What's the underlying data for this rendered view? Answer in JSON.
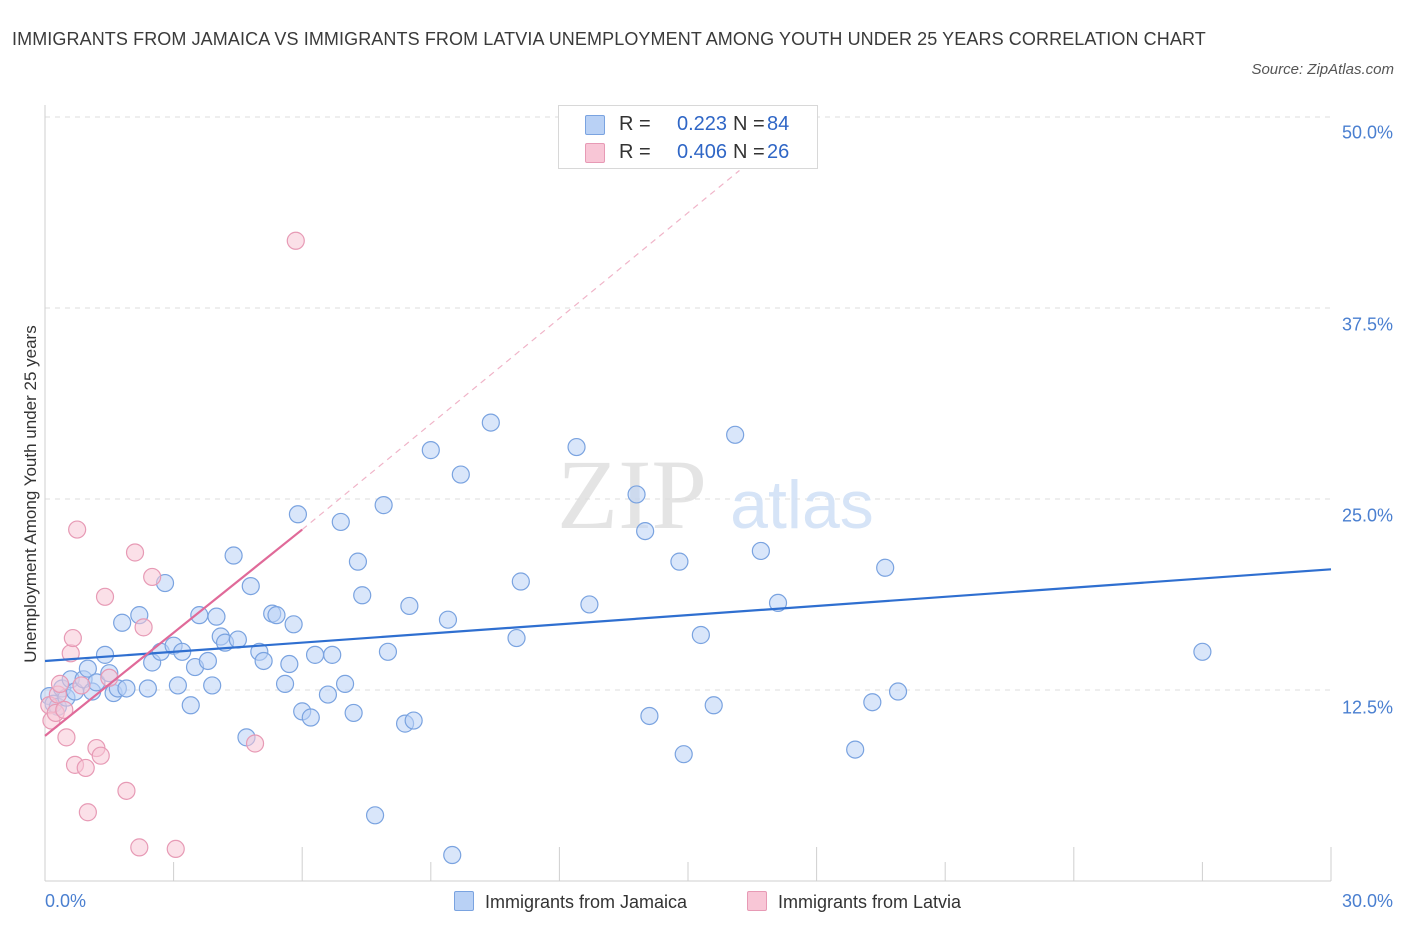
{
  "title": "IMMIGRANTS FROM JAMAICA VS IMMIGRANTS FROM LATVIA UNEMPLOYMENT AMONG YOUTH UNDER 25 YEARS CORRELATION CHART",
  "source": "Source: ZipAtlas.com",
  "watermark": {
    "zip": "ZIP",
    "atlas": "atlas"
  },
  "colors": {
    "jamaica": "#2f6fd0",
    "latvia": "#e06a99",
    "jamaica_fill": "#b9d1f5",
    "latvia_fill": "#f8c6d6"
  },
  "stats": [
    {
      "r_label": "R =",
      "r": "0.223",
      "n_label": "N =",
      "n": "84"
    },
    {
      "r_label": "R =",
      "r": "0.406",
      "n_label": "N =",
      "n": "26"
    }
  ],
  "legend": [
    "Immigrants from Jamaica",
    "Immigrants from Latvia"
  ],
  "chart_data": {
    "type": "scatter",
    "title": "IMMIGRANTS FROM JAMAICA VS IMMIGRANTS FROM LATVIA UNEMPLOYMENT AMONG YOUTH UNDER 25 YEARS CORRELATION CHART",
    "xlabel": "",
    "ylabel": "Unemployment Among Youth under 25 years",
    "xlim": [
      0,
      30
    ],
    "ylim": [
      0,
      50
    ],
    "x_tick_labels": [
      "0.0%",
      "30.0%"
    ],
    "y_ticks": [
      12.5,
      25,
      37.5,
      50
    ],
    "y_tick_labels": [
      "12.5%",
      "25.0%",
      "37.5%",
      "50.0%"
    ],
    "grid": true,
    "series": [
      {
        "name": "Immigrants from Jamaica",
        "color": "#2f6fd0",
        "points": [
          [
            0.1,
            12.1
          ],
          [
            0.2,
            11.6
          ],
          [
            0.3,
            11.4
          ],
          [
            0.4,
            12.6
          ],
          [
            0.5,
            12.0
          ],
          [
            0.6,
            13.2
          ],
          [
            0.7,
            12.4
          ],
          [
            0.9,
            13.2
          ],
          [
            1.0,
            13.9
          ],
          [
            1.1,
            12.4
          ],
          [
            1.2,
            13.0
          ],
          [
            1.4,
            14.8
          ],
          [
            1.5,
            13.6
          ],
          [
            1.6,
            12.3
          ],
          [
            1.7,
            12.6
          ],
          [
            1.8,
            16.9
          ],
          [
            1.9,
            12.6
          ],
          [
            2.2,
            17.4
          ],
          [
            2.4,
            12.6
          ],
          [
            2.5,
            14.3
          ],
          [
            2.7,
            15.0
          ],
          [
            2.8,
            19.5
          ],
          [
            3.0,
            15.4
          ],
          [
            3.1,
            12.8
          ],
          [
            3.2,
            15.0
          ],
          [
            3.4,
            11.5
          ],
          [
            3.5,
            14.0
          ],
          [
            3.6,
            17.4
          ],
          [
            3.8,
            14.4
          ],
          [
            3.9,
            12.8
          ],
          [
            4.0,
            17.3
          ],
          [
            4.1,
            16.0
          ],
          [
            4.2,
            15.6
          ],
          [
            4.4,
            21.3
          ],
          [
            4.5,
            15.8
          ],
          [
            4.7,
            9.4
          ],
          [
            4.8,
            19.3
          ],
          [
            5.0,
            15.0
          ],
          [
            5.1,
            14.4
          ],
          [
            5.3,
            17.5
          ],
          [
            5.4,
            17.4
          ],
          [
            5.6,
            12.9
          ],
          [
            5.7,
            14.2
          ],
          [
            5.8,
            16.8
          ],
          [
            5.9,
            24.0
          ],
          [
            6.0,
            11.1
          ],
          [
            6.2,
            10.7
          ],
          [
            6.3,
            14.8
          ],
          [
            6.6,
            12.2
          ],
          [
            6.7,
            14.8
          ],
          [
            6.9,
            23.5
          ],
          [
            7.0,
            12.9
          ],
          [
            7.2,
            11.0
          ],
          [
            7.3,
            20.9
          ],
          [
            7.4,
            18.7
          ],
          [
            7.7,
            4.3
          ],
          [
            7.9,
            24.6
          ],
          [
            8.0,
            15.0
          ],
          [
            8.4,
            10.3
          ],
          [
            8.5,
            18.0
          ],
          [
            8.6,
            10.5
          ],
          [
            9.0,
            28.2
          ],
          [
            9.4,
            17.1
          ],
          [
            9.5,
            1.7
          ],
          [
            9.7,
            26.6
          ],
          [
            10.4,
            30.0
          ],
          [
            11.0,
            15.9
          ],
          [
            11.1,
            19.6
          ],
          [
            12.4,
            28.4
          ],
          [
            12.7,
            18.1
          ],
          [
            13.8,
            25.3
          ],
          [
            14.0,
            22.9
          ],
          [
            14.1,
            10.8
          ],
          [
            14.8,
            20.9
          ],
          [
            14.9,
            8.3
          ],
          [
            15.3,
            16.1
          ],
          [
            15.6,
            11.5
          ],
          [
            16.1,
            29.2
          ],
          [
            16.7,
            21.6
          ],
          [
            17.1,
            18.2
          ],
          [
            18.9,
            8.6
          ],
          [
            19.3,
            11.7
          ],
          [
            19.6,
            20.5
          ],
          [
            19.9,
            12.4
          ],
          [
            27.0,
            15.0
          ]
        ],
        "trend": {
          "x": [
            0,
            30
          ],
          "y": [
            14.4,
            20.4
          ]
        }
      },
      {
        "name": "Immigrants from Latvia",
        "color": "#e06a99",
        "points": [
          [
            0.1,
            11.5
          ],
          [
            0.15,
            10.5
          ],
          [
            0.25,
            11.0
          ],
          [
            0.3,
            12.2
          ],
          [
            0.35,
            12.9
          ],
          [
            0.45,
            11.2
          ],
          [
            0.5,
            9.4
          ],
          [
            0.6,
            14.9
          ],
          [
            0.65,
            15.9
          ],
          [
            0.7,
            7.6
          ],
          [
            0.75,
            23.0
          ],
          [
            0.85,
            12.8
          ],
          [
            0.95,
            7.4
          ],
          [
            1.0,
            4.5
          ],
          [
            1.2,
            8.7
          ],
          [
            1.3,
            8.2
          ],
          [
            1.4,
            18.6
          ],
          [
            1.5,
            13.3
          ],
          [
            1.9,
            5.9
          ],
          [
            2.1,
            21.5
          ],
          [
            2.2,
            2.2
          ],
          [
            2.3,
            16.6
          ],
          [
            2.5,
            19.9
          ],
          [
            3.05,
            2.1
          ],
          [
            4.9,
            9.0
          ],
          [
            5.85,
            41.9
          ]
        ],
        "trend": {
          "x": [
            0,
            6.0
          ],
          "y": [
            9.5,
            23.0
          ]
        },
        "trend_extension": {
          "x": [
            6.0,
            16.2
          ],
          "y": [
            23.0,
            46.5
          ]
        }
      }
    ]
  }
}
